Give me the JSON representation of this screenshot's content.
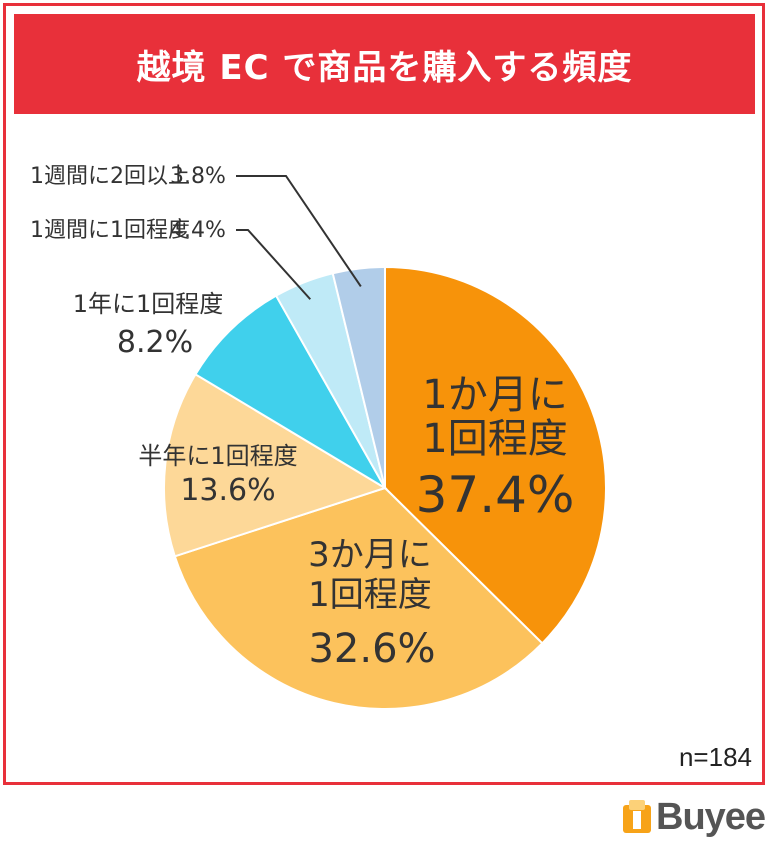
{
  "header": {
    "title": "越境 EC で商品を購入する頻度"
  },
  "footer": {
    "sample_size": "n=184",
    "brand": "Buyee"
  },
  "colors": {
    "accent": "#e8303a",
    "slices": [
      "#f7930a",
      "#fcc25c",
      "#fdd898",
      "#40d0ec",
      "#bfeaf7",
      "#b1cde9"
    ]
  },
  "chart_data": {
    "type": "pie",
    "title": "越境 EC で商品を購入する頻度",
    "slices": [
      {
        "label": "1か月に1回程度",
        "value": 37.4,
        "value_label": "37.4%",
        "label_lines": [
          "1か月に",
          "1回程度"
        ]
      },
      {
        "label": "3か月に1回程度",
        "value": 32.6,
        "value_label": "32.6%",
        "label_lines": [
          "3か月に",
          "1回程度"
        ]
      },
      {
        "label": "半年に1回程度",
        "value": 13.6,
        "value_label": "13.6%",
        "label_lines": [
          "半年に1回程度"
        ]
      },
      {
        "label": "1年に1回程度",
        "value": 8.2,
        "value_label": "8.2%",
        "label_lines": [
          "1年に1回程度"
        ]
      },
      {
        "label": "1週間に1回程度",
        "value": 4.4,
        "value_label": "4.4%",
        "label_lines": [
          "1週間に1回程度"
        ]
      },
      {
        "label": "1週間に2回以上",
        "value": 3.8,
        "value_label": "3.8%",
        "label_lines": [
          "1週間に2回以上"
        ]
      }
    ],
    "start": "12 o'clock",
    "direction": "clockwise"
  }
}
